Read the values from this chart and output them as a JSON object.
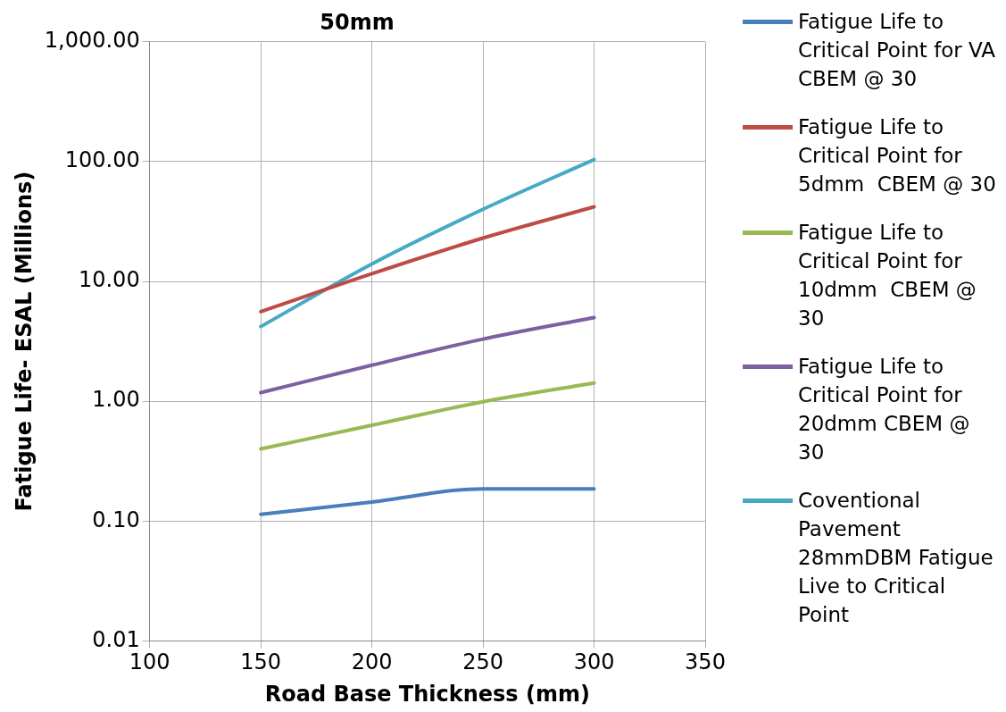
{
  "chart_data": {
    "type": "line",
    "title": "50mm",
    "xlabel": "Road Base Thickness (mm)",
    "ylabel": "Fatigue Life- ESAL (Millions)",
    "x": [
      150,
      200,
      250,
      300
    ],
    "series": [
      {
        "name": "Fatigue Life to Critical Point for VA CBEM @ 30",
        "color": "#4a7ebb",
        "values": [
          0.114,
          0.144,
          0.186,
          0.186
        ]
      },
      {
        "name": "Fatigue Life to Critical Point for 5dmm  CBEM @ 30",
        "color": "#be4b48",
        "values": [
          5.6,
          11.6,
          23,
          42
        ]
      },
      {
        "name": "Fatigue Life to Critical Point for 10dmm  CBEM @ 30",
        "color": "#98b954",
        "values": [
          0.4,
          0.63,
          0.99,
          1.42
        ]
      },
      {
        "name": "Fatigue Life to Critical Point for 20dmm CBEM @ 30",
        "color": "#7d60a0",
        "values": [
          1.18,
          2.0,
          3.3,
          5.0
        ]
      },
      {
        "name": "Coventional Pavement 28mmDBM Fatigue Live to Critical Point",
        "color": "#46aac5",
        "values": [
          4.2,
          14,
          40,
          104
        ]
      }
    ],
    "xlim": [
      100,
      350
    ],
    "xticks": [
      100,
      150,
      200,
      250,
      300,
      350
    ],
    "ylim": [
      0.01,
      1000
    ],
    "yticks": [
      {
        "value": 0.01,
        "label": "0.01"
      },
      {
        "value": 0.1,
        "label": "0.10"
      },
      {
        "value": 1,
        "label": "1.00"
      },
      {
        "value": 10,
        "label": "10.00"
      },
      {
        "value": 100,
        "label": "100.00"
      },
      {
        "value": 1000,
        "label": "1,000.00"
      }
    ],
    "log": "y",
    "grid": true,
    "legend": "right",
    "marker": "none",
    "line_style": "solid"
  }
}
